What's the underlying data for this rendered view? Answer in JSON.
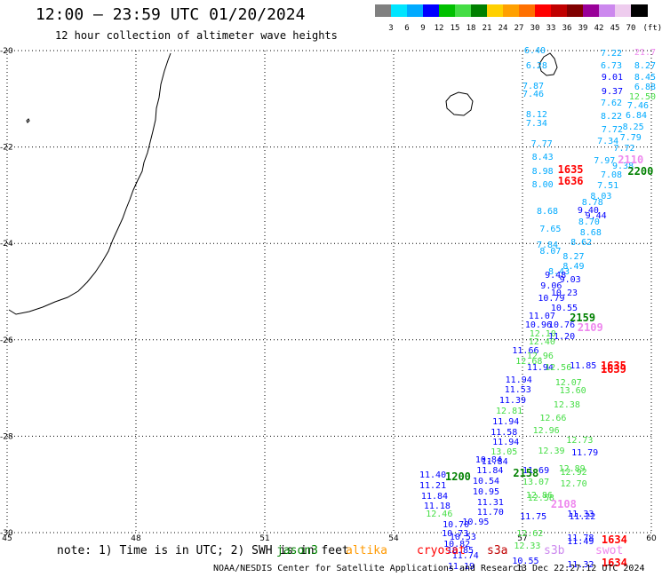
{
  "title": "12:00 – 23:59 UTC 01/20/2024",
  "subtitle": "12 hour collection of altimeter wave heights",
  "colorbar": {
    "unit": "(ft)",
    "labels": [
      "3",
      "6",
      "9",
      "12",
      "15",
      "18",
      "21",
      "24",
      "27",
      "30",
      "33",
      "36",
      "39",
      "42",
      "45",
      "70"
    ],
    "colors": [
      "#808080",
      "#00e5ff",
      "#00aaff",
      "#0000ff",
      "#00c000",
      "#44dd44",
      "#008000",
      "#ffd000",
      "#ffa000",
      "#ff7000",
      "#ff0000",
      "#c00000",
      "#800000",
      "#990099",
      "#cc88ee",
      "#eeccee",
      "#000000"
    ]
  },
  "axes": {
    "lat_labels": [
      "-20",
      "-22",
      "-24",
      "-26",
      "-28",
      "-30"
    ],
    "lon_labels": [
      "45",
      "48",
      "51",
      "54",
      "57",
      "60"
    ]
  },
  "observations": [
    {
      "t": "6.40",
      "c": "#00aaff",
      "lat": -20.02,
      "lon": 57.04
    },
    {
      "t": "6.28",
      "c": "#00aaff",
      "lat": -20.33,
      "lon": 57.08
    },
    {
      "t": "7.22",
      "c": "#00aaff",
      "lat": -20.07,
      "lon": 58.82
    },
    {
      "t": "6.73",
      "c": "#00aaff",
      "lat": -20.33,
      "lon": 58.82
    },
    {
      "t": "9.01",
      "c": "#0000ff",
      "lat": -20.58,
      "lon": 58.84
    },
    {
      "t": "9.37",
      "c": "#0000ff",
      "lat": -20.86,
      "lon": 58.84
    },
    {
      "t": "7.62",
      "c": "#00aaff",
      "lat": -21.1,
      "lon": 58.82
    },
    {
      "t": "8.22",
      "c": "#00aaff",
      "lat": -21.38,
      "lon": 58.82
    },
    {
      "t": "7.72",
      "c": "#00aaff",
      "lat": -21.65,
      "lon": 58.84
    },
    {
      "t": "7.34",
      "c": "#00aaff",
      "lat": -21.9,
      "lon": 58.74
    },
    {
      "t": "7.72",
      "c": "#00aaff",
      "lat": -22.05,
      "lon": 59.12
    },
    {
      "t": "8.27",
      "c": "#00aaff",
      "lat": -20.34,
      "lon": 59.66
    },
    {
      "t": "8.45",
      "c": "#00aaff",
      "lat": -20.57,
      "lon": 59.64
    },
    {
      "t": "6.88",
      "c": "#00aaff",
      "lat": -20.78,
      "lon": 59.62
    },
    {
      "t": "12.50",
      "c": "#44dd44",
      "lat": -20.97,
      "lon": 59.56
    },
    {
      "t": "7.46",
      "c": "#00aaff",
      "lat": -21.16,
      "lon": 59.44
    },
    {
      "t": "6.84",
      "c": "#00aaff",
      "lat": -21.37,
      "lon": 59.4
    },
    {
      "t": "8.25",
      "c": "#00aaff",
      "lat": -21.6,
      "lon": 59.33
    },
    {
      "t": "7.79",
      "c": "#00aaff",
      "lat": -21.83,
      "lon": 59.27
    },
    {
      "t": "21.7",
      "c": "#ee88ee",
      "lat": -20.05,
      "lon": 59.62
    },
    {
      "t": "7.87",
      "c": "#00aaff",
      "lat": -20.76,
      "lon": 57.0
    },
    {
      "t": "7.46",
      "c": "#00aaff",
      "lat": -20.93,
      "lon": 57.0
    },
    {
      "t": "8.12",
      "c": "#00aaff",
      "lat": -21.35,
      "lon": 57.08
    },
    {
      "t": "7.34",
      "c": "#00aaff",
      "lat": -21.52,
      "lon": 57.08
    },
    {
      "t": "7.77",
      "c": "#00aaff",
      "lat": -21.95,
      "lon": 57.2
    },
    {
      "t": "8.43",
      "c": "#00aaff",
      "lat": -22.23,
      "lon": 57.22
    },
    {
      "t": "8.98",
      "c": "#00aaff",
      "lat": -22.53,
      "lon": 57.22
    },
    {
      "t": "8.00",
      "c": "#00aaff",
      "lat": -22.8,
      "lon": 57.22
    },
    {
      "t": "7.97",
      "c": "#00aaff",
      "lat": -22.3,
      "lon": 58.66
    },
    {
      "t": "9.38",
      "c": "#00aaff",
      "lat": -22.42,
      "lon": 59.09
    },
    {
      "t": "7.08",
      "c": "#00aaff",
      "lat": -22.6,
      "lon": 58.82
    },
    {
      "t": "7.51",
      "c": "#00aaff",
      "lat": -22.81,
      "lon": 58.74
    },
    {
      "t": "8.03",
      "c": "#00aaff",
      "lat": -23.03,
      "lon": 58.58
    },
    {
      "t": "8.78",
      "c": "#00aaff",
      "lat": -23.17,
      "lon": 58.38
    },
    {
      "t": "9.40",
      "c": "#0000ff",
      "lat": -23.34,
      "lon": 58.28
    },
    {
      "t": "9.44",
      "c": "#0000ff",
      "lat": -23.45,
      "lon": 58.46
    },
    {
      "t": "8.70",
      "c": "#00aaff",
      "lat": -23.58,
      "lon": 58.3
    },
    {
      "t": "8.68",
      "c": "#00aaff",
      "lat": -23.79,
      "lon": 58.34
    },
    {
      "t": "8.68",
      "c": "#00aaff",
      "lat": -23.35,
      "lon": 57.33
    },
    {
      "t": "7.65",
      "c": "#00aaff",
      "lat": -23.72,
      "lon": 57.4
    },
    {
      "t": "7.84",
      "c": "#00aaff",
      "lat": -24.05,
      "lon": 57.33
    },
    {
      "t": "8.07",
      "c": "#00aaff",
      "lat": -24.18,
      "lon": 57.4
    },
    {
      "t": "8.62",
      "c": "#00aaff",
      "lat": -24.0,
      "lon": 58.12
    },
    {
      "t": "8.27",
      "c": "#00aaff",
      "lat": -24.3,
      "lon": 57.94
    },
    {
      "t": "8.49",
      "c": "#00aaff",
      "lat": -24.49,
      "lon": 57.94
    },
    {
      "t": "8.43",
      "c": "#00aaff",
      "lat": -24.6,
      "lon": 57.6
    },
    {
      "t": "9.03",
      "c": "#0000ff",
      "lat": -24.77,
      "lon": 57.86
    },
    {
      "t": "9.48",
      "c": "#0000ff",
      "lat": -24.68,
      "lon": 57.52
    },
    {
      "t": "9.06",
      "c": "#0000ff",
      "lat": -24.9,
      "lon": 57.42
    },
    {
      "t": "10.23",
      "c": "#0000ff",
      "lat": -25.05,
      "lon": 57.66
    },
    {
      "t": "10.79",
      "c": "#0000ff",
      "lat": -25.16,
      "lon": 57.36
    },
    {
      "t": "10.55",
      "c": "#0000ff",
      "lat": -25.36,
      "lon": 57.66
    },
    {
      "t": "11.07",
      "c": "#0000ff",
      "lat": -25.52,
      "lon": 57.14
    },
    {
      "t": "10.76",
      "c": "#0000ff",
      "lat": -25.7,
      "lon": 57.6
    },
    {
      "t": "10.96",
      "c": "#0000ff",
      "lat": -25.7,
      "lon": 57.06
    },
    {
      "t": "12.10",
      "c": "#44dd44",
      "lat": -25.9,
      "lon": 57.16
    },
    {
      "t": "11.20",
      "c": "#0000ff",
      "lat": -25.95,
      "lon": 57.6
    },
    {
      "t": "12.40",
      "c": "#44dd44",
      "lat": -26.06,
      "lon": 57.14
    },
    {
      "t": "2159",
      "c": "#008000",
      "lat": -25.52,
      "lon": 58.1
    },
    {
      "t": "2109",
      "c": "#ee88ee",
      "lat": -25.72,
      "lon": 58.28
    },
    {
      "t": "11.66",
      "c": "#0000ff",
      "lat": -26.24,
      "lon": 56.76
    },
    {
      "t": "12.68",
      "c": "#44dd44",
      "lat": -26.46,
      "lon": 56.84
    },
    {
      "t": "11.94",
      "c": "#0000ff",
      "lat": -26.59,
      "lon": 57.1
    },
    {
      "t": "11.85",
      "c": "#0000ff",
      "lat": -26.55,
      "lon": 58.1
    },
    {
      "t": "12.96",
      "c": "#44dd44",
      "lat": -26.36,
      "lon": 57.1
    },
    {
      "t": "12.56",
      "c": "#44dd44",
      "lat": -26.6,
      "lon": 57.52
    },
    {
      "t": "11.94",
      "c": "#0000ff",
      "lat": -26.85,
      "lon": 56.6
    },
    {
      "t": "12.07",
      "c": "#44dd44",
      "lat": -26.9,
      "lon": 57.76
    },
    {
      "t": "11.53",
      "c": "#0000ff",
      "lat": -27.05,
      "lon": 56.58
    },
    {
      "t": "13.60",
      "c": "#44dd44",
      "lat": -27.08,
      "lon": 57.86
    },
    {
      "t": "11.39",
      "c": "#0000ff",
      "lat": -27.28,
      "lon": 56.46
    },
    {
      "t": "12.38",
      "c": "#44dd44",
      "lat": -27.36,
      "lon": 57.72
    },
    {
      "t": "12.81",
      "c": "#44dd44",
      "lat": -27.5,
      "lon": 56.38
    },
    {
      "t": "12.66",
      "c": "#44dd44",
      "lat": -27.65,
      "lon": 57.4
    },
    {
      "t": "11.94",
      "c": "#0000ff",
      "lat": -27.72,
      "lon": 56.3
    },
    {
      "t": "11.58",
      "c": "#0000ff",
      "lat": -27.93,
      "lon": 56.26
    },
    {
      "t": "12.96",
      "c": "#44dd44",
      "lat": -27.9,
      "lon": 57.24
    },
    {
      "t": "11.94",
      "c": "#0000ff",
      "lat": -28.14,
      "lon": 56.3
    },
    {
      "t": "12.73",
      "c": "#44dd44",
      "lat": -28.1,
      "lon": 58.02
    },
    {
      "t": "12.39",
      "c": "#44dd44",
      "lat": -28.32,
      "lon": 57.36
    },
    {
      "t": "13.05",
      "c": "#44dd44",
      "lat": -28.34,
      "lon": 56.26
    },
    {
      "t": "11.79",
      "c": "#0000ff",
      "lat": -28.37,
      "lon": 58.14
    },
    {
      "t": "10.84",
      "c": "#0000ff",
      "lat": -28.5,
      "lon": 55.9
    },
    {
      "t": "11.84",
      "c": "#0000ff",
      "lat": -28.55,
      "lon": 56.04
    },
    {
      "t": "11.84",
      "c": "#0000ff",
      "lat": -28.73,
      "lon": 55.93
    },
    {
      "t": "11.69",
      "c": "#0000ff",
      "lat": -28.73,
      "lon": 57.0
    },
    {
      "t": "12.89",
      "c": "#44dd44",
      "lat": -28.7,
      "lon": 57.84
    },
    {
      "t": "12.92",
      "c": "#44dd44",
      "lat": -28.77,
      "lon": 57.88
    },
    {
      "t": "10.54",
      "c": "#0000ff",
      "lat": -28.95,
      "lon": 55.84
    },
    {
      "t": "13.07",
      "c": "#44dd44",
      "lat": -28.97,
      "lon": 57.0
    },
    {
      "t": "12.70",
      "c": "#44dd44",
      "lat": -29.0,
      "lon": 57.88
    },
    {
      "t": "10.95",
      "c": "#0000ff",
      "lat": -29.17,
      "lon": 55.84
    },
    {
      "t": "12.86",
      "c": "#44dd44",
      "lat": -29.25,
      "lon": 57.08
    },
    {
      "t": "12.58",
      "c": "#44dd44",
      "lat": -29.3,
      "lon": 57.12
    },
    {
      "t": "11.31",
      "c": "#0000ff",
      "lat": -29.39,
      "lon": 55.94
    },
    {
      "t": "11.70",
      "c": "#0000ff",
      "lat": -29.59,
      "lon": 55.94
    },
    {
      "t": "11.75",
      "c": "#0000ff",
      "lat": -29.68,
      "lon": 56.94
    },
    {
      "t": "11.33",
      "c": "#0000ff",
      "lat": -29.63,
      "lon": 58.04
    },
    {
      "t": "11.22",
      "c": "#0000ff",
      "lat": -29.68,
      "lon": 58.08
    },
    {
      "t": "10.95",
      "c": "#0000ff",
      "lat": -29.8,
      "lon": 55.6
    },
    {
      "t": "11.40",
      "c": "#0000ff",
      "lat": -28.83,
      "lon": 54.6
    },
    {
      "t": "11.21",
      "c": "#0000ff",
      "lat": -29.05,
      "lon": 54.6
    },
    {
      "t": "11.84",
      "c": "#0000ff",
      "lat": -29.26,
      "lon": 54.64
    },
    {
      "t": "11.18",
      "c": "#0000ff",
      "lat": -29.47,
      "lon": 54.7
    },
    {
      "t": "12.46",
      "c": "#44dd44",
      "lat": -29.64,
      "lon": 54.75
    },
    {
      "t": "10.70",
      "c": "#0000ff",
      "lat": -29.86,
      "lon": 55.14
    },
    {
      "t": "10.73",
      "c": "#0000ff",
      "lat": -30.04,
      "lon": 55.12
    },
    {
      "t": "10.53",
      "c": "#0000ff",
      "lat": -30.11,
      "lon": 55.3
    },
    {
      "t": "10.82",
      "c": "#0000ff",
      "lat": -30.26,
      "lon": 55.16
    },
    {
      "t": "10.85",
      "c": "#0000ff",
      "lat": -30.39,
      "lon": 55.24
    },
    {
      "t": "11.74",
      "c": "#0000ff",
      "lat": -30.5,
      "lon": 55.36
    },
    {
      "t": "11.19",
      "c": "#0000ff",
      "lat": -30.72,
      "lon": 55.26
    },
    {
      "t": "12.62",
      "c": "#44dd44",
      "lat": -30.04,
      "lon": 56.86
    },
    {
      "t": "12.33",
      "c": "#44dd44",
      "lat": -30.3,
      "lon": 56.8
    },
    {
      "t": "10.55",
      "c": "#0000ff",
      "lat": -30.6,
      "lon": 56.76
    },
    {
      "t": "11.78",
      "c": "#0000ff",
      "lat": -30.13,
      "lon": 58.04
    },
    {
      "t": "11.49",
      "c": "#0000ff",
      "lat": -30.2,
      "lon": 58.04
    },
    {
      "t": "11.32",
      "c": "#0000ff",
      "lat": -30.68,
      "lon": 58.04
    },
    {
      "t": "1200",
      "c": "#008000",
      "lat": -28.83,
      "lon": 55.2
    },
    {
      "t": "2158",
      "c": "#008000",
      "lat": -28.75,
      "lon": 56.78
    },
    {
      "t": "2108",
      "c": "#ee88ee",
      "lat": -29.4,
      "lon": 57.66
    },
    {
      "t": "2110",
      "c": "#ee88ee",
      "lat": -22.25,
      "lon": 59.22
    },
    {
      "t": "2200",
      "c": "#008000",
      "lat": -22.48,
      "lon": 59.45
    },
    {
      "t": "1635",
      "c": "#ff0000",
      "lat": -22.45,
      "lon": 57.82
    },
    {
      "t": "1636",
      "c": "#ff0000",
      "lat": -22.68,
      "lon": 57.82
    },
    {
      "t": "1635",
      "c": "#ff0000",
      "lat": -26.52,
      "lon": 58.82
    },
    {
      "t": "1639",
      "c": "#ff0000",
      "lat": -26.6,
      "lon": 58.82
    },
    {
      "t": "1634",
      "c": "#ff0000",
      "lat": -30.13,
      "lon": 58.84
    },
    {
      "t": "1634",
      "c": "#ff0000",
      "lat": -30.6,
      "lon": 58.84
    }
  ],
  "footer": {
    "note": "note: 1) Time is in UTC; 2) SWH is in feet",
    "satellites": [
      {
        "name": "jason3",
        "color": "#008000"
      },
      {
        "name": "altika",
        "color": "#ff9900"
      },
      {
        "name": "cryosat",
        "color": "#ff0000"
      },
      {
        "name": "s3a",
        "color": "#c00000"
      },
      {
        "name": "s3b",
        "color": "#cc88ee"
      },
      {
        "name": "swot",
        "color": "#ee88ee"
      }
    ],
    "credit": "NOAA/NESDIS Center for Satellite Applications and Research",
    "timestamp": "13 Dec 22:27:12 UTC 2024"
  }
}
